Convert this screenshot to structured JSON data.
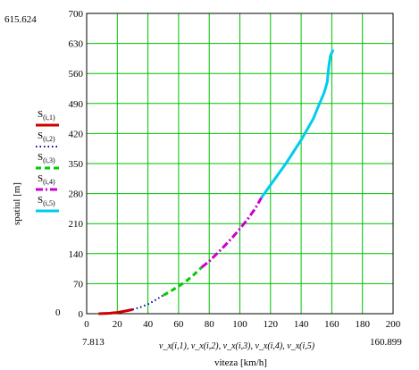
{
  "chart_data": {
    "type": "line",
    "xlabel": "viteza [km/h]",
    "ylabel": "spatiul [m]",
    "xlim": [
      0,
      200
    ],
    "ylim": [
      0,
      700
    ],
    "x_ticks": [
      "0",
      "20",
      "40",
      "60",
      "80",
      "100",
      "120",
      "140",
      "160",
      "180",
      "200"
    ],
    "y_ticks": [
      "0",
      "70",
      "140",
      "210",
      "280",
      "350",
      "420",
      "490",
      "560",
      "630",
      "700"
    ],
    "x_range_labels": {
      "min": "7.813",
      "max": "160.899"
    },
    "y_range_labels": {
      "min": "0",
      "max": "615.624"
    },
    "x_series_label": "v_x(i,1), v_x(i,2), v_x(i,3), v_x(i,4), v_x(i,5)",
    "grid": true,
    "colors": {
      "grid": "#00c000"
    },
    "series": [
      {
        "name": "S(i,1)",
        "color": "#cc0000",
        "dash": "solid",
        "points": [
          [
            7.8,
            0
          ],
          [
            15,
            1
          ],
          [
            20,
            3
          ],
          [
            25,
            6
          ],
          [
            30,
            9.5
          ]
        ]
      },
      {
        "name": "S(i,2)",
        "color": "#000099",
        "dash": "dot",
        "points": [
          [
            30,
            9.5
          ],
          [
            35,
            15
          ],
          [
            40,
            22
          ],
          [
            45,
            32
          ],
          [
            50,
            43
          ]
        ]
      },
      {
        "name": "S(i,3)",
        "color": "#00cc00",
        "dash": "dash",
        "points": [
          [
            50,
            43
          ],
          [
            55,
            53
          ],
          [
            60,
            64
          ],
          [
            65,
            76
          ],
          [
            70,
            91
          ],
          [
            75,
            108
          ]
        ]
      },
      {
        "name": "S(i,4)",
        "color": "#cc00cc",
        "dash": "dashdot",
        "points": [
          [
            75,
            108
          ],
          [
            80,
            122
          ],
          [
            85,
            140
          ],
          [
            90,
            158
          ],
          [
            95,
            177
          ],
          [
            100,
            198
          ],
          [
            105,
            220
          ],
          [
            110,
            245
          ],
          [
            114,
            270
          ]
        ]
      },
      {
        "name": "S(i,5)",
        "color": "#00ccee",
        "dash": "solid",
        "points": [
          [
            114,
            270
          ],
          [
            120,
            300
          ],
          [
            130,
            350
          ],
          [
            140,
            405
          ],
          [
            148,
            455
          ],
          [
            152,
            490
          ],
          [
            155,
            515
          ],
          [
            157,
            540
          ],
          [
            158,
            575
          ],
          [
            159,
            600
          ],
          [
            160.9,
            615.6
          ]
        ]
      }
    ]
  }
}
